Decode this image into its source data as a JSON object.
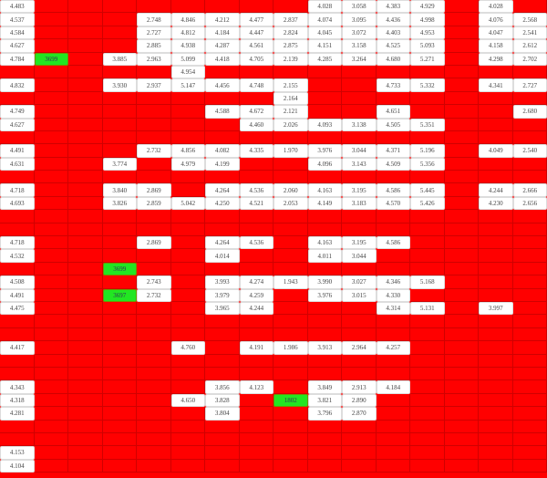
{
  "colors": {
    "empty": "#ff0000",
    "value": "#ffffff",
    "highlight": "#22e622"
  },
  "rows": [
    [
      "4.483",
      null,
      null,
      null,
      null,
      null,
      null,
      null,
      null,
      "4.028",
      "3.058",
      "4.383",
      "4.929",
      null,
      "4.028",
      null
    ],
    [
      "4.537",
      null,
      null,
      null,
      "2.748",
      "4.846",
      "4.212",
      "4.477",
      "2.837",
      "4.074",
      "3.095",
      "4.436",
      "4.998",
      null,
      "4.076",
      "2.568"
    ],
    [
      "4.584",
      null,
      null,
      null,
      "2.727",
      "4.812",
      "4.184",
      "4.447",
      "2.824",
      "4.045",
      "3.072",
      "4.403",
      "4.953",
      null,
      "4.047",
      "2.541"
    ],
    [
      "4.627",
      null,
      null,
      null,
      "2.885",
      "4.938",
      "4.287",
      "4.561",
      "2.875",
      "4.151",
      "3.158",
      "4.525",
      "5.093",
      null,
      "4.158",
      "2.612"
    ],
    [
      "4.784",
      {
        "v": "3699",
        "hl": true
      },
      null,
      "3.885",
      "2.963",
      "5.099",
      "4.418",
      "4.705",
      "2.139",
      "4.285",
      "3.264",
      "4.680",
      "5.271",
      null,
      "4.298",
      "2.702"
    ],
    [
      null,
      null,
      null,
      null,
      null,
      "4.954",
      null,
      null,
      null,
      null,
      null,
      null,
      null,
      null,
      null,
      null
    ],
    [
      "4.832",
      null,
      null,
      "3.930",
      "2.937",
      "5.147",
      "4.456",
      "4.748",
      "2.155",
      null,
      null,
      "4.733",
      "5.332",
      null,
      "4.341",
      "2.727"
    ],
    [
      null,
      null,
      null,
      null,
      null,
      null,
      null,
      null,
      "2.164",
      null,
      null,
      null,
      null,
      null,
      null,
      null
    ],
    [
      "4.749",
      null,
      null,
      null,
      null,
      null,
      "4.588",
      "4.672",
      "2.121",
      null,
      null,
      "4.651",
      null,
      null,
      null,
      "2.680"
    ],
    [
      "4.627",
      null,
      null,
      null,
      null,
      null,
      null,
      "4.460",
      "2.026",
      "4.093",
      "3.138",
      "4.505",
      "5.351",
      null,
      null,
      null
    ],
    [
      null,
      null,
      null,
      null,
      null,
      null,
      null,
      null,
      null,
      null,
      null,
      null,
      null,
      null,
      null,
      null
    ],
    [
      "4.491",
      null,
      null,
      null,
      "2.732",
      "4.856",
      "4.082",
      "4.335",
      "1.970",
      "3.976",
      "3.044",
      "4.371",
      "5.196",
      null,
      "4.049",
      "2.540"
    ],
    [
      "4.631",
      null,
      null,
      "3.774",
      null,
      "4.979",
      "4.199",
      null,
      null,
      "4.096",
      "3.143",
      "4.509",
      "5.356",
      null,
      null,
      null
    ],
    [
      null,
      null,
      null,
      null,
      null,
      null,
      null,
      null,
      null,
      null,
      null,
      null,
      null,
      null,
      null,
      null
    ],
    [
      "4.718",
      null,
      null,
      "3.840",
      "2.869",
      null,
      "4.264",
      "4.536",
      "2.060",
      "4.163",
      "3.195",
      "4.586",
      "5.445",
      null,
      "4.244",
      "2.666"
    ],
    [
      "4.693",
      null,
      null,
      "3.826",
      "2.859",
      "5.042",
      "4.250",
      "4.521",
      "2.053",
      "4.149",
      "3.183",
      "4.570",
      "5.426",
      null,
      "4.230",
      "2.656"
    ],
    [
      null,
      null,
      null,
      null,
      null,
      null,
      null,
      null,
      null,
      null,
      null,
      null,
      null,
      null,
      null,
      null
    ],
    [
      null,
      null,
      null,
      null,
      null,
      null,
      null,
      null,
      null,
      null,
      null,
      null,
      null,
      null,
      null,
      null
    ],
    [
      "4.718",
      null,
      null,
      null,
      "2.869",
      null,
      "4.264",
      "4.536",
      null,
      "4.163",
      "3.195",
      "4.586",
      null,
      null,
      null,
      null
    ],
    [
      "4.532",
      null,
      null,
      null,
      null,
      null,
      "4.014",
      null,
      null,
      "4.011",
      "3.044",
      null,
      null,
      null,
      null,
      null
    ],
    [
      null,
      null,
      null,
      {
        "v": "3699",
        "hl": true
      },
      null,
      null,
      null,
      null,
      null,
      null,
      null,
      null,
      null,
      null,
      null,
      null
    ],
    [
      "4.508",
      null,
      null,
      null,
      "2.743",
      null,
      "3.993",
      "4.274",
      "1.943",
      "3.990",
      "3.027",
      "4.346",
      "5.168",
      null,
      null,
      null
    ],
    [
      "4.491",
      null,
      null,
      {
        "v": "3697",
        "hl": true
      },
      "2.732",
      null,
      "3.979",
      "4.259",
      null,
      "3.976",
      "3.015",
      "4.330",
      null,
      null,
      null,
      null
    ],
    [
      "4.475",
      null,
      null,
      null,
      null,
      null,
      "3.965",
      "4.244",
      null,
      null,
      null,
      "4.314",
      "5.131",
      null,
      "3.997",
      null
    ],
    [
      null,
      null,
      null,
      null,
      null,
      null,
      null,
      null,
      null,
      null,
      null,
      null,
      null,
      null,
      null,
      null
    ],
    [
      null,
      null,
      null,
      null,
      null,
      null,
      null,
      null,
      null,
      null,
      null,
      null,
      null,
      null,
      null,
      null
    ],
    [
      "4.417",
      null,
      null,
      null,
      null,
      "4.760",
      null,
      "4.191",
      "1.986",
      "3.913",
      "2.964",
      "4.257",
      null,
      null,
      null,
      null
    ],
    [
      null,
      null,
      null,
      null,
      null,
      null,
      null,
      null,
      null,
      null,
      null,
      null,
      null,
      null,
      null,
      null
    ],
    [
      null,
      null,
      null,
      null,
      null,
      null,
      null,
      null,
      null,
      null,
      null,
      null,
      null,
      null,
      null,
      null
    ],
    [
      "4.343",
      null,
      null,
      null,
      null,
      null,
      "3.856",
      "4.123",
      null,
      "3.849",
      "2.913",
      "4.184",
      null,
      null,
      null,
      null
    ],
    [
      "4.318",
      null,
      null,
      null,
      null,
      "4.650",
      "3.828",
      null,
      {
        "v": "1802",
        "hl": true
      },
      "3.821",
      "2.890",
      null,
      null,
      null,
      null,
      null
    ],
    [
      "4.281",
      null,
      null,
      null,
      null,
      null,
      "3.804",
      null,
      null,
      "3.796",
      "2.870",
      null,
      null,
      null,
      null,
      null
    ],
    [
      null,
      null,
      null,
      null,
      null,
      null,
      null,
      null,
      null,
      null,
      null,
      null,
      null,
      null,
      null,
      null
    ],
    [
      null,
      null,
      null,
      null,
      null,
      null,
      null,
      null,
      null,
      null,
      null,
      null,
      null,
      null,
      null,
      null
    ],
    [
      "4.153",
      null,
      null,
      null,
      null,
      null,
      null,
      null,
      null,
      null,
      null,
      null,
      null,
      null,
      null,
      null
    ],
    [
      "4.104",
      null,
      null,
      null,
      null,
      null,
      null,
      null,
      null,
      null,
      null,
      null,
      null,
      null,
      null,
      null
    ]
  ]
}
